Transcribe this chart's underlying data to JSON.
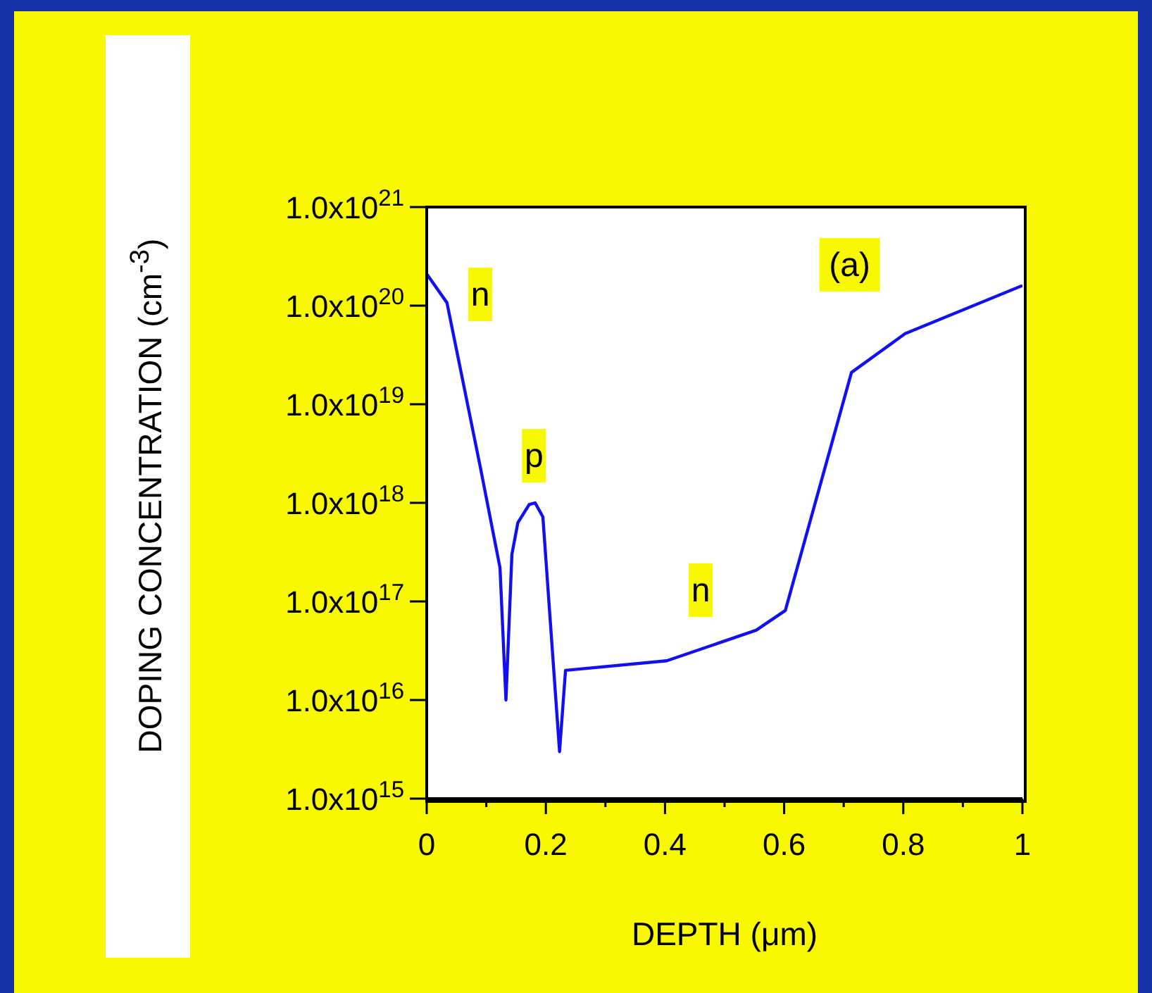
{
  "chart_data": {
    "type": "line",
    "xlabel": "DEPTH (μm)",
    "ylabel": "DOPING CONCENTRATION (cm$^{-3}$)",
    "x": [
      0,
      0.034,
      0.09,
      0.123,
      0.133,
      0.143,
      0.153,
      0.172,
      0.182,
      0.195,
      0.223,
      0.233,
      0.403,
      0.553,
      0.602,
      0.713,
      0.803,
      1.0
    ],
    "series": [
      {
        "color": "#1010f0",
        "values": [
          2.1e+20,
          1.07e+20,
          2.3e+18,
          2.2e+17,
          1e+16,
          3e+17,
          6.3e+17,
          9.6e+17,
          1e+18,
          7.2e+17,
          3000000000000000.0,
          2e+16,
          2.5e+16,
          5.1e+16,
          8.1e+16,
          2.1e+19,
          5.2e+19,
          1.6e+20
        ]
      }
    ],
    "xlim": [
      0,
      1
    ],
    "xticks": [
      0,
      {
        "value": 0.1,
        "label": null
      },
      0.2,
      {
        "value": 0.3,
        "label": null
      },
      0.4,
      {
        "value": 0.5,
        "label": null
      },
      0.6,
      {
        "value": 0.7,
        "label": null
      },
      0.8,
      {
        "value": 0.9,
        "label": null
      },
      1
    ],
    "ylim": [
      1000000000000000.0,
      1e+21
    ],
    "yticks": [
      {
        "value": 1000000000000000.0,
        "label": "1.0x10$^{15}$"
      },
      {
        "value": 1e+16,
        "label": "1.0x10$^{16}$"
      },
      {
        "value": 1e+17,
        "label": "1.0x10$^{17}$"
      },
      {
        "value": 1e+18,
        "label": "1.0x10$^{18}$"
      },
      {
        "value": 1e+19,
        "label": "1.0x10$^{19}$"
      },
      {
        "value": 1e+20,
        "label": "1.0x10$^{20}$"
      },
      {
        "value": 1e+21,
        "label": "1.0x10$^{21}$"
      }
    ],
    "log": "y",
    "grid": false,
    "marker": "none",
    "line_style": "solid",
    "annotations": [
      {
        "text": "n",
        "x": 0.09,
        "y": 1.3e+20
      },
      {
        "text": "p",
        "x": 0.18,
        "y": 3e+18
      },
      {
        "text": "n",
        "x": 0.46,
        "y": 1.3e+17
      },
      {
        "text": "(a)",
        "x": 0.71,
        "y": 2.6e+20
      }
    ]
  }
}
